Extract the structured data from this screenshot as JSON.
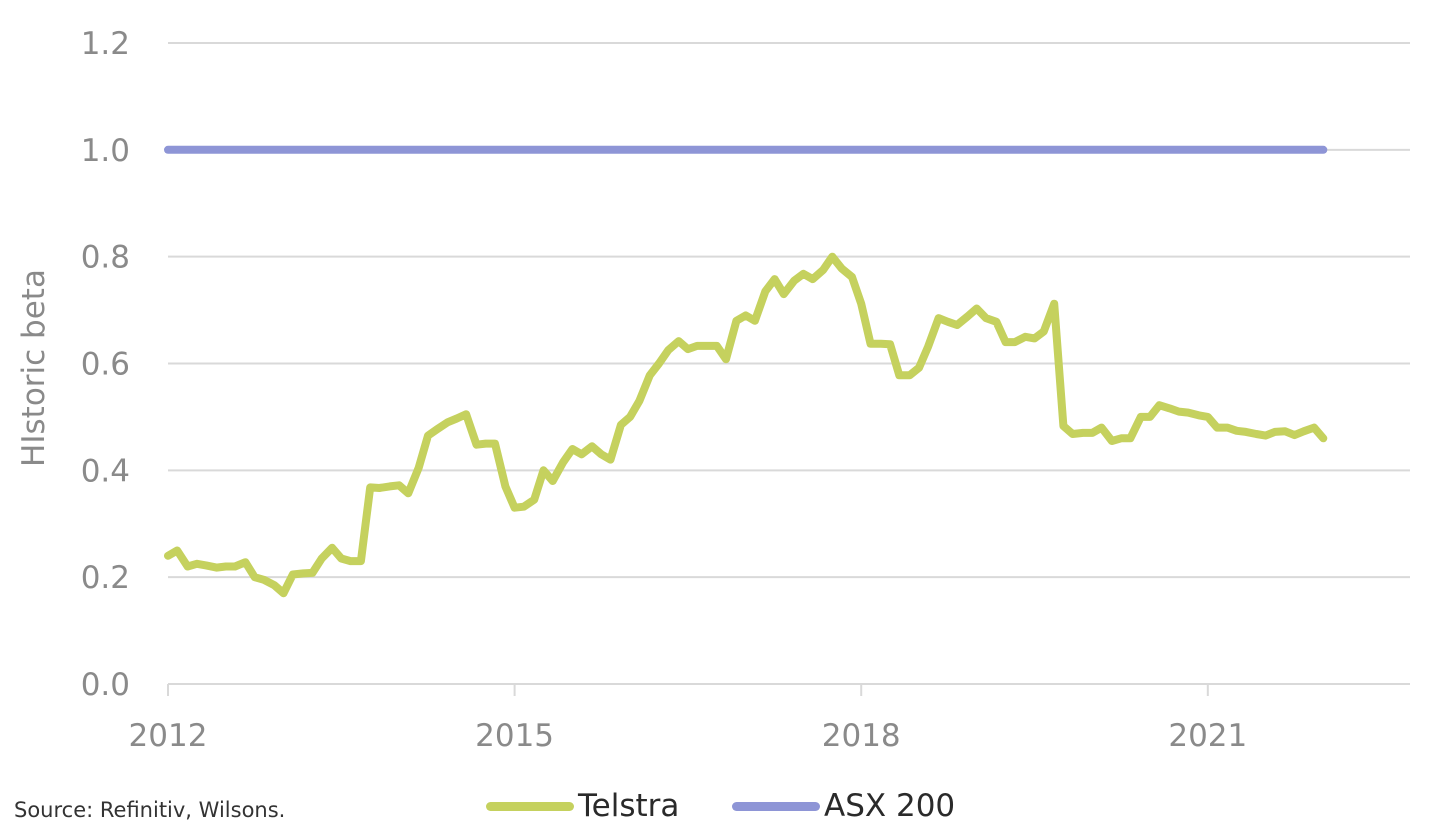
{
  "chart_data": {
    "type": "line",
    "ylabel": "HIstoric beta",
    "xlabel": "",
    "ylim": [
      0,
      1.2
    ],
    "yticks": [
      "0.0",
      "0.2",
      "0.4",
      "0.6",
      "0.8",
      "1.0",
      "1.2"
    ],
    "xlim": [
      2012,
      2022.75
    ],
    "xticks": [
      {
        "value": 2012,
        "label": "2012"
      },
      {
        "value": 2015,
        "label": "2015"
      },
      {
        "value": 2018,
        "label": "2018"
      },
      {
        "value": 2021,
        "label": "2021"
      }
    ],
    "grid": true,
    "series": [
      {
        "name": "Telstra",
        "color": "#c5d15e",
        "x": [
          2012.0,
          2012.08,
          2012.17,
          2012.25,
          2012.33,
          2012.42,
          2012.5,
          2012.58,
          2012.67,
          2012.75,
          2012.83,
          2012.92,
          2013.0,
          2013.08,
          2013.17,
          2013.25,
          2013.33,
          2013.42,
          2013.5,
          2013.58,
          2013.67,
          2013.75,
          2013.83,
          2013.92,
          2014.0,
          2014.08,
          2014.17,
          2014.25,
          2014.33,
          2014.42,
          2014.5,
          2014.58,
          2014.67,
          2014.75,
          2014.83,
          2014.92,
          2015.0,
          2015.08,
          2015.17,
          2015.25,
          2015.33,
          2015.42,
          2015.5,
          2015.58,
          2015.67,
          2015.75,
          2015.83,
          2015.92,
          2016.0,
          2016.08,
          2016.17,
          2016.25,
          2016.33,
          2016.42,
          2016.5,
          2016.58,
          2016.67,
          2016.75,
          2016.83,
          2016.92,
          2017.0,
          2017.08,
          2017.17,
          2017.25,
          2017.33,
          2017.42,
          2017.5,
          2017.58,
          2017.67,
          2017.75,
          2017.83,
          2017.92,
          2018.0,
          2018.08,
          2018.17,
          2018.25,
          2018.33,
          2018.42,
          2018.5,
          2018.58,
          2018.67,
          2018.75,
          2018.83,
          2018.92,
          2019.0,
          2019.08,
          2019.17,
          2019.25,
          2019.33,
          2019.42,
          2019.5,
          2019.58,
          2019.67,
          2019.75,
          2019.83,
          2019.92,
          2020.0,
          2020.08,
          2020.17,
          2020.25,
          2020.33,
          2020.42,
          2020.5,
          2020.58,
          2020.67,
          2020.75,
          2020.83,
          2020.92,
          2021.0,
          2021.08,
          2021.17,
          2021.25,
          2021.33,
          2021.42,
          2021.5,
          2021.58,
          2021.67,
          2021.75,
          2021.83,
          2021.92,
          2022.0
        ],
        "values": [
          0.24,
          0.25,
          0.22,
          0.225,
          0.222,
          0.218,
          0.22,
          0.22,
          0.228,
          0.2,
          0.195,
          0.185,
          0.17,
          0.205,
          0.207,
          0.208,
          0.235,
          0.255,
          0.235,
          0.23,
          0.23,
          0.368,
          0.367,
          0.37,
          0.372,
          0.357,
          0.405,
          0.465,
          0.477,
          0.49,
          0.497,
          0.505,
          0.448,
          0.45,
          0.45,
          0.37,
          0.33,
          0.332,
          0.345,
          0.4,
          0.38,
          0.415,
          0.44,
          0.43,
          0.445,
          0.43,
          0.42,
          0.485,
          0.5,
          0.53,
          0.578,
          0.6,
          0.625,
          0.642,
          0.627,
          0.633,
          0.633,
          0.633,
          0.608,
          0.68,
          0.69,
          0.68,
          0.735,
          0.758,
          0.73,
          0.755,
          0.768,
          0.758,
          0.775,
          0.8,
          0.778,
          0.762,
          0.712,
          0.637,
          0.637,
          0.636,
          0.578,
          0.578,
          0.592,
          0.632,
          0.685,
          0.678,
          0.672,
          0.688,
          0.703,
          0.685,
          0.678,
          0.64,
          0.64,
          0.65,
          0.647,
          0.66,
          0.712,
          0.483,
          0.468,
          0.47,
          0.47,
          0.48,
          0.455,
          0.46,
          0.46,
          0.5,
          0.5,
          0.522,
          0.516,
          0.51,
          0.508,
          0.503,
          0.5,
          0.48,
          0.48,
          0.474,
          0.472,
          0.468,
          0.465,
          0.472,
          0.473,
          0.466,
          0.473,
          0.48,
          0.46
        ]
      },
      {
        "name": "ASX 200",
        "color": "#8e95d6",
        "x": [
          2012.0,
          2022.0
        ],
        "values": [
          1.0,
          1.0
        ]
      }
    ]
  },
  "source": "Source: Refinitiv, Wilsons.",
  "legend": [
    {
      "label": "Telstra",
      "color": "#c5d15e"
    },
    {
      "label": "ASX 200",
      "color": "#8e95d6"
    }
  ]
}
